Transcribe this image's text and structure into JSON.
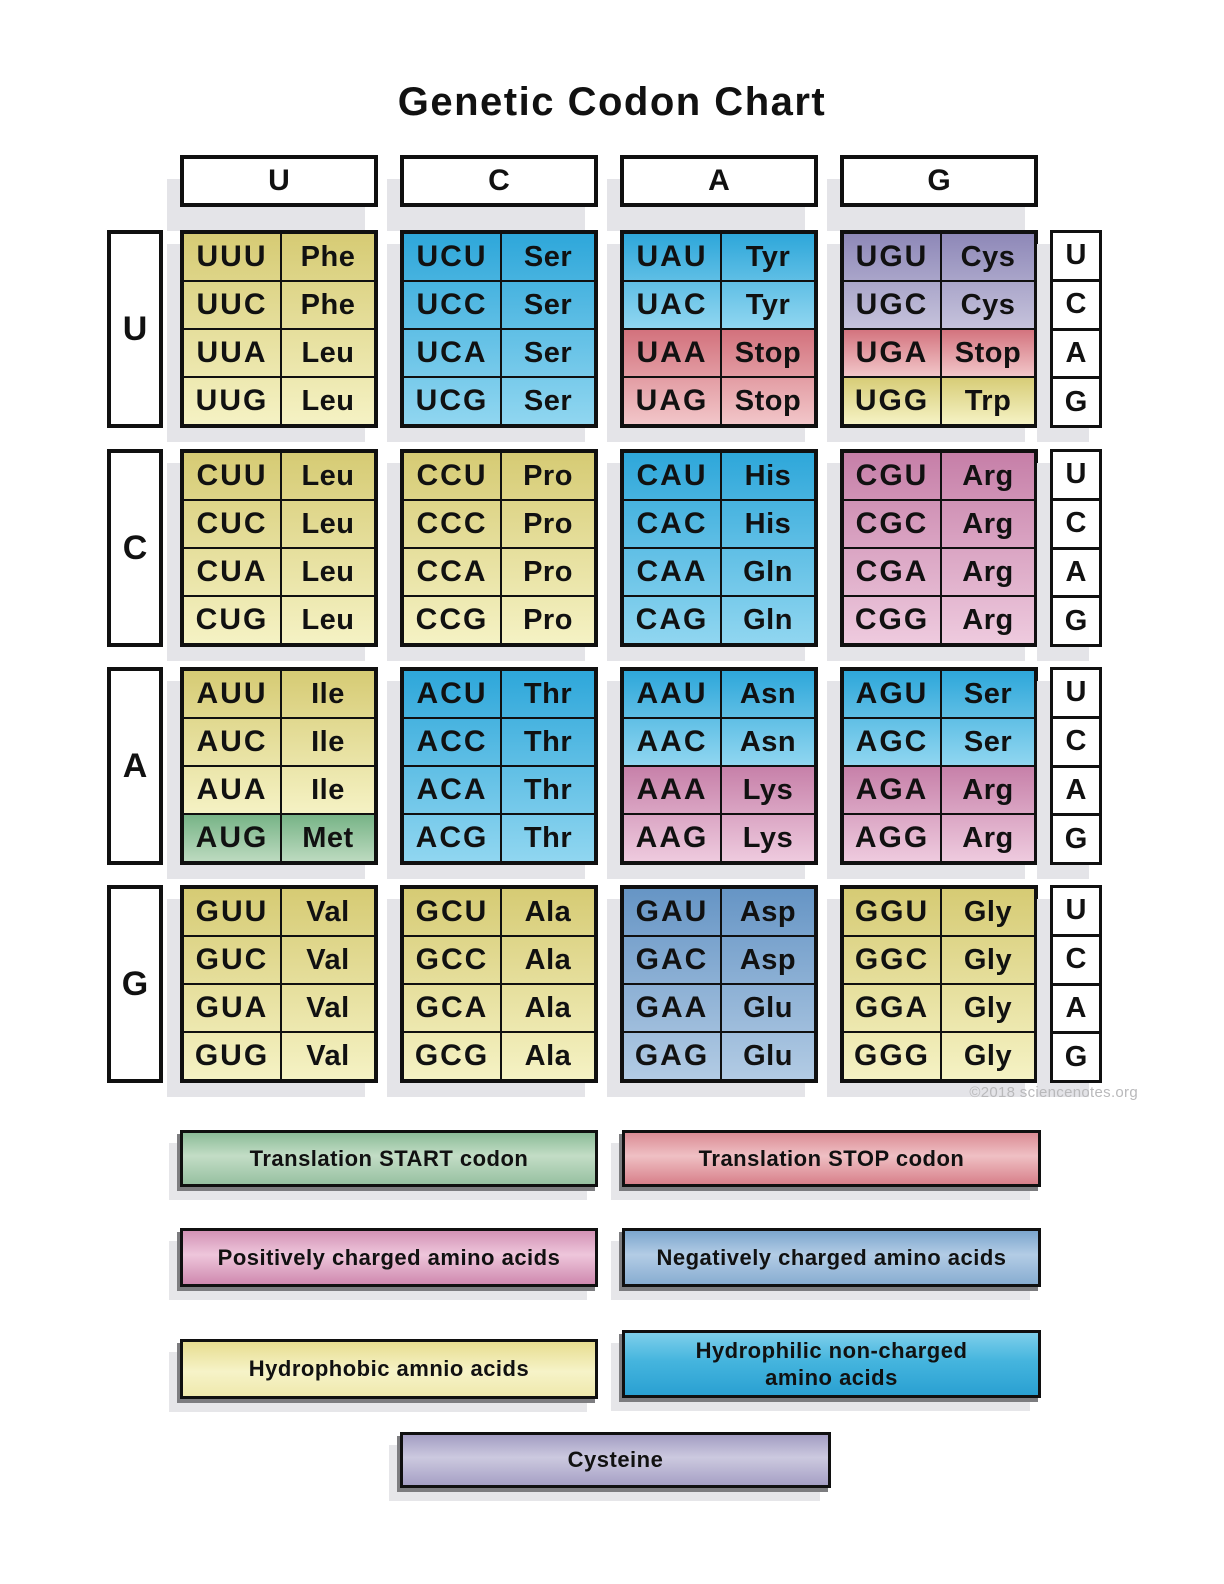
{
  "title": "Genetic Codon Chart",
  "copyright": "©2018 sciencenotes.org",
  "axis": {
    "second_base_headers": [
      "U",
      "C",
      "A",
      "G"
    ],
    "third_base_labels": [
      "U",
      "C",
      "A",
      "G"
    ]
  },
  "colors": {
    "hydrophobic_yellow": "#e8df94",
    "hydrophilic_blue": "#4cb9e2",
    "positively_charged_pink": "#d795b8",
    "negatively_charged_blue": "#8db1d4",
    "stop_red": "#dd8992",
    "start_green": "#93bf9e",
    "cysteine_purple": "#a9a3c7",
    "shadow_gray": "#e4e4e8"
  },
  "groups": [
    {
      "first_base": "U",
      "blocks": [
        {
          "second_base": "U",
          "rows": [
            {
              "codon": "UUU",
              "amino": "Phe",
              "cls": "hydrophobic"
            },
            {
              "codon": "UUC",
              "amino": "Phe",
              "cls": "hydrophobic"
            },
            {
              "codon": "UUA",
              "amino": "Leu",
              "cls": "hydrophobic"
            },
            {
              "codon": "UUG",
              "amino": "Leu",
              "cls": "hydrophobic"
            }
          ]
        },
        {
          "second_base": "C",
          "rows": [
            {
              "codon": "UCU",
              "amino": "Ser",
              "cls": "hydrophilic"
            },
            {
              "codon": "UCC",
              "amino": "Ser",
              "cls": "hydrophilic"
            },
            {
              "codon": "UCA",
              "amino": "Ser",
              "cls": "hydrophilic"
            },
            {
              "codon": "UCG",
              "amino": "Ser",
              "cls": "hydrophilic"
            }
          ]
        },
        {
          "second_base": "A",
          "rows": [
            {
              "codon": "UAU",
              "amino": "Tyr",
              "cls": "hydrophilic"
            },
            {
              "codon": "UAC",
              "amino": "Tyr",
              "cls": "hydrophilic"
            },
            {
              "codon": "UAA",
              "amino": "Stop",
              "cls": "stop"
            },
            {
              "codon": "UAG",
              "amino": "Stop",
              "cls": "stop"
            }
          ]
        },
        {
          "second_base": "G",
          "rows": [
            {
              "codon": "UGU",
              "amino": "Cys",
              "cls": "cysteine"
            },
            {
              "codon": "UGC",
              "amino": "Cys",
              "cls": "cysteine"
            },
            {
              "codon": "UGA",
              "amino": "Stop",
              "cls": "stop"
            },
            {
              "codon": "UGG",
              "amino": "Trp",
              "cls": "hydrophobic"
            }
          ]
        }
      ]
    },
    {
      "first_base": "C",
      "blocks": [
        {
          "second_base": "U",
          "rows": [
            {
              "codon": "CUU",
              "amino": "Leu",
              "cls": "hydrophobic"
            },
            {
              "codon": "CUC",
              "amino": "Leu",
              "cls": "hydrophobic"
            },
            {
              "codon": "CUA",
              "amino": "Leu",
              "cls": "hydrophobic"
            },
            {
              "codon": "CUG",
              "amino": "Leu",
              "cls": "hydrophobic"
            }
          ]
        },
        {
          "second_base": "C",
          "rows": [
            {
              "codon": "CCU",
              "amino": "Pro",
              "cls": "hydrophobic"
            },
            {
              "codon": "CCC",
              "amino": "Pro",
              "cls": "hydrophobic"
            },
            {
              "codon": "CCA",
              "amino": "Pro",
              "cls": "hydrophobic"
            },
            {
              "codon": "CCG",
              "amino": "Pro",
              "cls": "hydrophobic"
            }
          ]
        },
        {
          "second_base": "A",
          "rows": [
            {
              "codon": "CAU",
              "amino": "His",
              "cls": "hydrophilic"
            },
            {
              "codon": "CAC",
              "amino": "His",
              "cls": "hydrophilic"
            },
            {
              "codon": "CAA",
              "amino": "Gln",
              "cls": "hydrophilic"
            },
            {
              "codon": "CAG",
              "amino": "Gln",
              "cls": "hydrophilic"
            }
          ]
        },
        {
          "second_base": "G",
          "rows": [
            {
              "codon": "CGU",
              "amino": "Arg",
              "cls": "positive"
            },
            {
              "codon": "CGC",
              "amino": "Arg",
              "cls": "positive"
            },
            {
              "codon": "CGA",
              "amino": "Arg",
              "cls": "positive"
            },
            {
              "codon": "CGG",
              "amino": "Arg",
              "cls": "positive"
            }
          ]
        }
      ]
    },
    {
      "first_base": "A",
      "blocks": [
        {
          "second_base": "U",
          "rows": [
            {
              "codon": "AUU",
              "amino": "Ile",
              "cls": "hydrophobic"
            },
            {
              "codon": "AUC",
              "amino": "Ile",
              "cls": "hydrophobic"
            },
            {
              "codon": "AUA",
              "amino": "Ile",
              "cls": "hydrophobic"
            },
            {
              "codon": "AUG",
              "amino": "Met",
              "cls": "start"
            }
          ]
        },
        {
          "second_base": "C",
          "rows": [
            {
              "codon": "ACU",
              "amino": "Thr",
              "cls": "hydrophilic"
            },
            {
              "codon": "ACC",
              "amino": "Thr",
              "cls": "hydrophilic"
            },
            {
              "codon": "ACA",
              "amino": "Thr",
              "cls": "hydrophilic"
            },
            {
              "codon": "ACG",
              "amino": "Thr",
              "cls": "hydrophilic"
            }
          ]
        },
        {
          "second_base": "A",
          "rows": [
            {
              "codon": "AAU",
              "amino": "Asn",
              "cls": "hydrophilic"
            },
            {
              "codon": "AAC",
              "amino": "Asn",
              "cls": "hydrophilic"
            },
            {
              "codon": "AAA",
              "amino": "Lys",
              "cls": "positive"
            },
            {
              "codon": "AAG",
              "amino": "Lys",
              "cls": "positive"
            }
          ]
        },
        {
          "second_base": "G",
          "rows": [
            {
              "codon": "AGU",
              "amino": "Ser",
              "cls": "hydrophilic"
            },
            {
              "codon": "AGC",
              "amino": "Ser",
              "cls": "hydrophilic"
            },
            {
              "codon": "AGA",
              "amino": "Arg",
              "cls": "positive"
            },
            {
              "codon": "AGG",
              "amino": "Arg",
              "cls": "positive"
            }
          ]
        }
      ]
    },
    {
      "first_base": "G",
      "blocks": [
        {
          "second_base": "U",
          "rows": [
            {
              "codon": "GUU",
              "amino": "Val",
              "cls": "hydrophobic"
            },
            {
              "codon": "GUC",
              "amino": "Val",
              "cls": "hydrophobic"
            },
            {
              "codon": "GUA",
              "amino": "Val",
              "cls": "hydrophobic"
            },
            {
              "codon": "GUG",
              "amino": "Val",
              "cls": "hydrophobic"
            }
          ]
        },
        {
          "second_base": "C",
          "rows": [
            {
              "codon": "GCU",
              "amino": "Ala",
              "cls": "hydrophobic"
            },
            {
              "codon": "GCC",
              "amino": "Ala",
              "cls": "hydrophobic"
            },
            {
              "codon": "GCA",
              "amino": "Ala",
              "cls": "hydrophobic"
            },
            {
              "codon": "GCG",
              "amino": "Ala",
              "cls": "hydrophobic"
            }
          ]
        },
        {
          "second_base": "A",
          "rows": [
            {
              "codon": "GAU",
              "amino": "Asp",
              "cls": "negative"
            },
            {
              "codon": "GAC",
              "amino": "Asp",
              "cls": "negative"
            },
            {
              "codon": "GAA",
              "amino": "Glu",
              "cls": "negative"
            },
            {
              "codon": "GAG",
              "amino": "Glu",
              "cls": "negative"
            }
          ]
        },
        {
          "second_base": "G",
          "rows": [
            {
              "codon": "GGU",
              "amino": "Gly",
              "cls": "hydrophobic"
            },
            {
              "codon": "GGC",
              "amino": "Gly",
              "cls": "hydrophobic"
            },
            {
              "codon": "GGA",
              "amino": "Gly",
              "cls": "hydrophobic"
            },
            {
              "codon": "GGG",
              "amino": "Gly",
              "cls": "hydrophobic"
            }
          ]
        }
      ]
    }
  ],
  "legend": [
    {
      "label": "Translation START codon",
      "category": "start"
    },
    {
      "label": "Translation STOP codon",
      "category": "stop"
    },
    {
      "label": "Positively charged amino acids",
      "category": "positive"
    },
    {
      "label": "Negatively charged amino acids",
      "category": "negative"
    },
    {
      "label": "Hydrophobic amnio acids",
      "category": "hydrophobic"
    },
    {
      "label": "Hydrophilic non-charged amino acids",
      "category": "hydrophilic"
    },
    {
      "label": "Cysteine",
      "category": "cysteine"
    }
  ]
}
